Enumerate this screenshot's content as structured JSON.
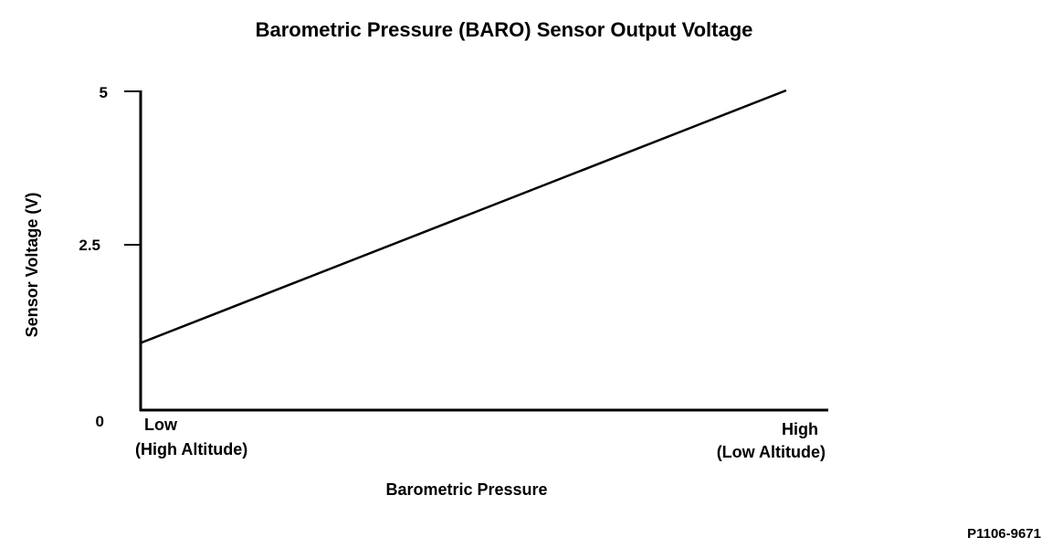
{
  "chart_data": {
    "type": "line",
    "title": "Barometric Pressure (BARO) Sensor Output Voltage",
    "xlabel": "Barometric Pressure",
    "ylabel": "Sensor Voltage (V)",
    "ylim": [
      0,
      5
    ],
    "xlim": [
      0,
      1
    ],
    "yticks": [
      {
        "value": 5,
        "label": "5"
      },
      {
        "value": 2.5,
        "label": "2.5"
      },
      {
        "value": 0,
        "label": "0"
      }
    ],
    "xticks": [
      {
        "value": 0,
        "label": "Low",
        "sublabel": "(High Altitude)"
      },
      {
        "value": 1,
        "label": "High",
        "sublabel": "(Low Altitude)"
      }
    ],
    "series": [
      {
        "name": "Sensor Output",
        "x": [
          0,
          0.94
        ],
        "y": [
          1.05,
          5.0
        ]
      }
    ],
    "grid": false,
    "footnote": "P1106-9671"
  }
}
